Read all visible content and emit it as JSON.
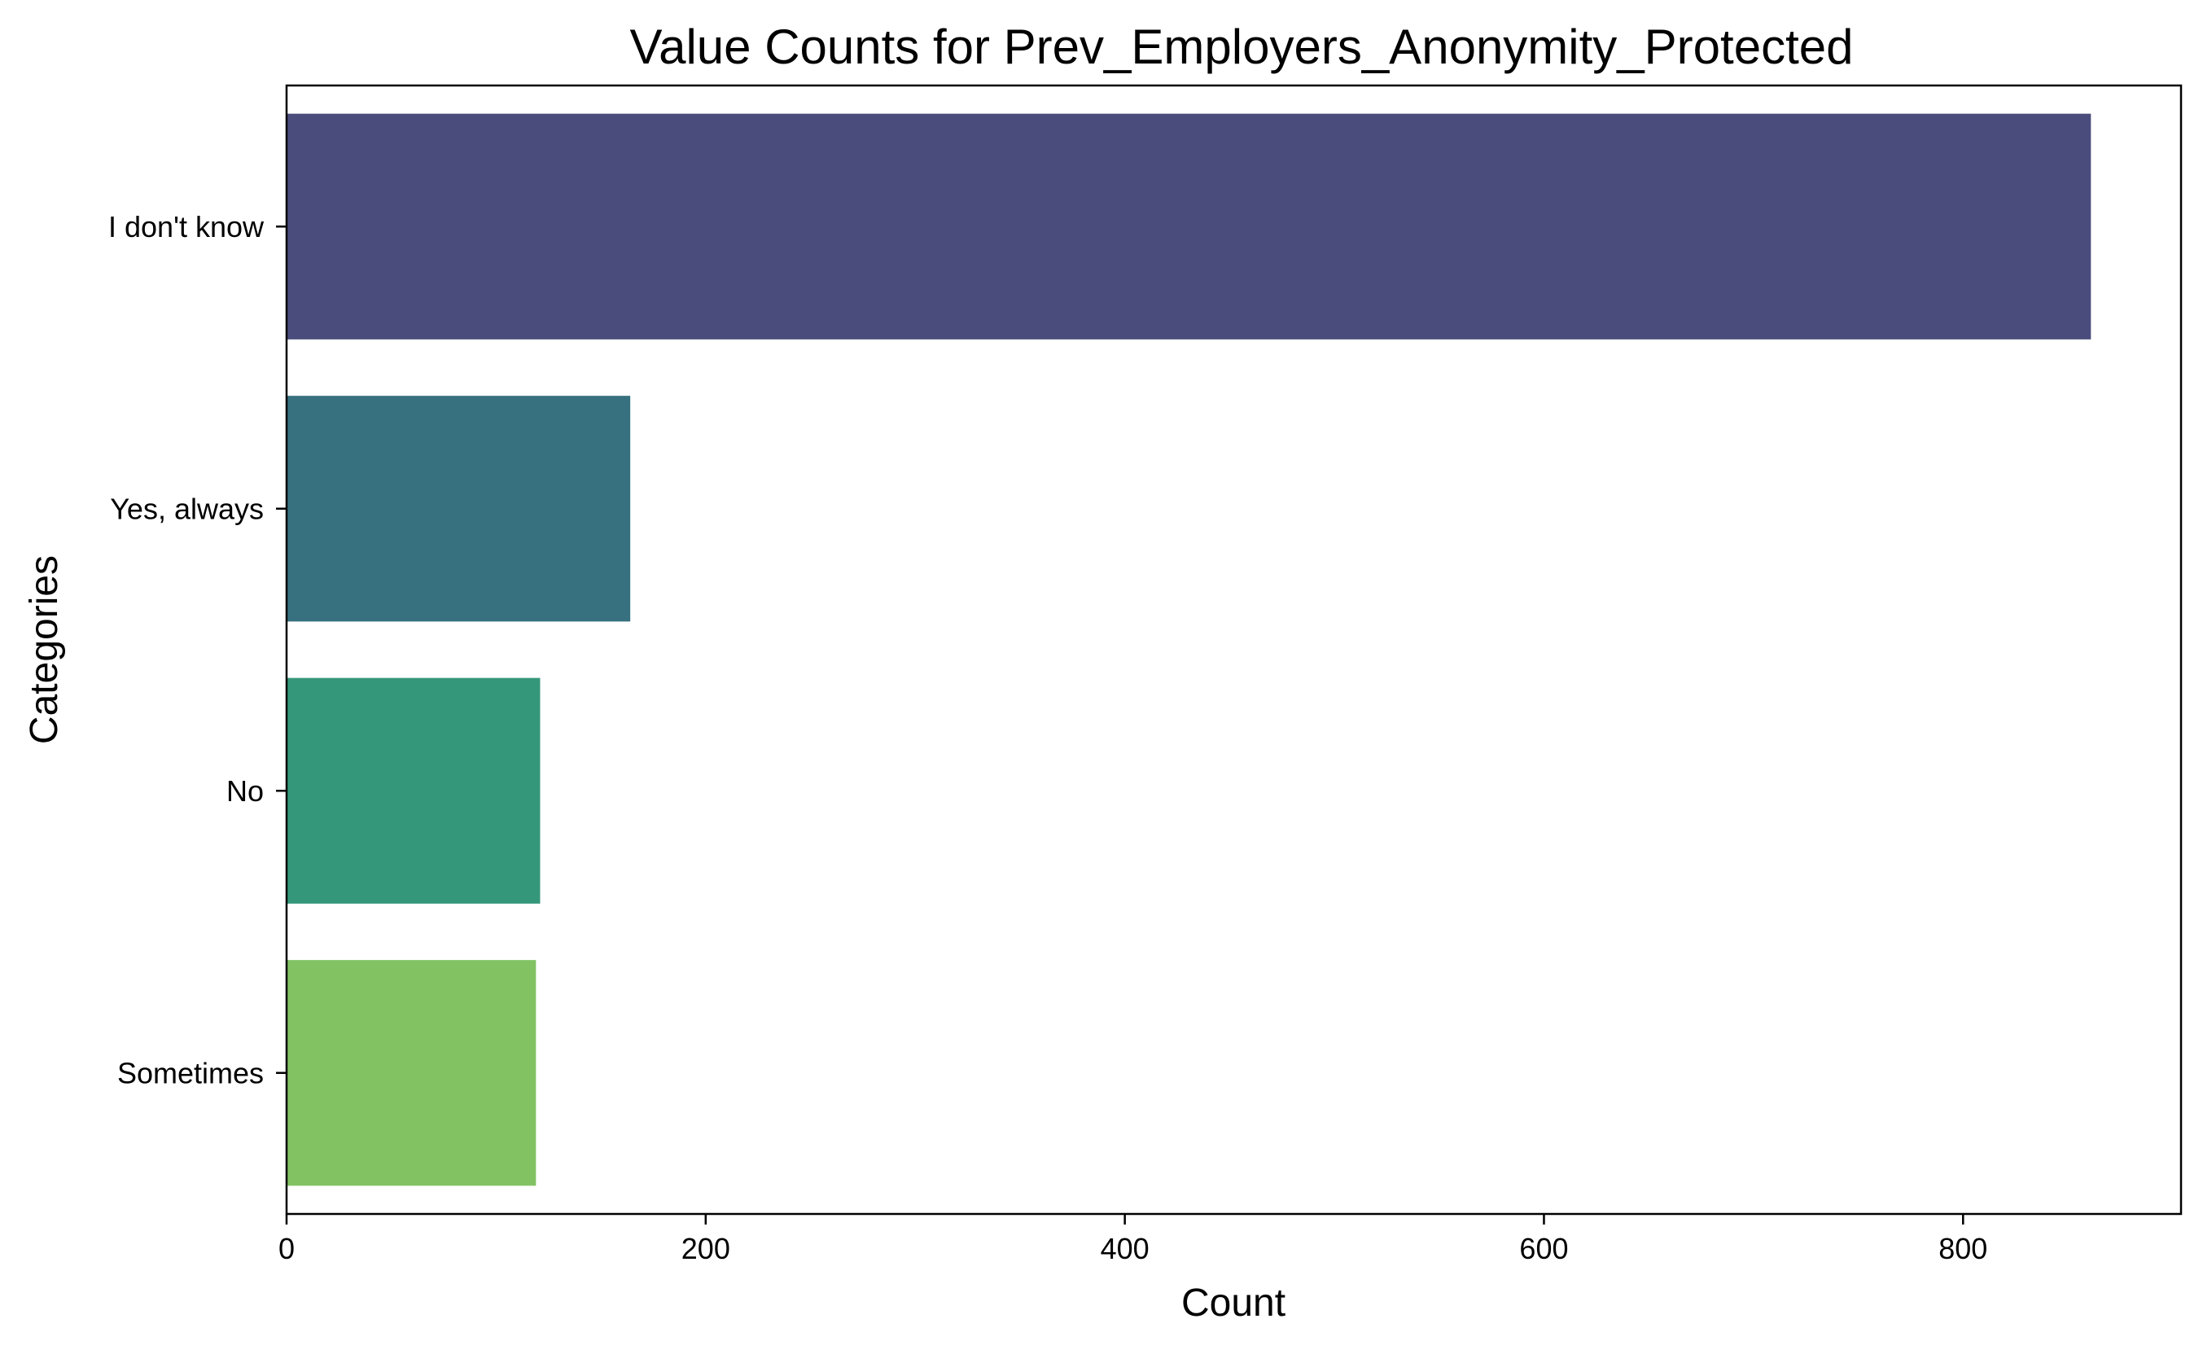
{
  "chart_data": {
    "type": "bar",
    "orientation": "horizontal",
    "title": "Value Counts for Prev_Employers_Anonymity_Protected",
    "xlabel": "Count",
    "ylabel": "Categories",
    "categories": [
      "I don't know",
      "Yes, always",
      "No",
      "Sometimes"
    ],
    "values": [
      861,
      164,
      121,
      119
    ],
    "colors": [
      "#4a4d7c",
      "#37717f",
      "#35977a",
      "#82c263"
    ],
    "xlim": [
      0,
      904
    ],
    "xticks": [
      0,
      200,
      400,
      600,
      800
    ],
    "grid": false,
    "legend": "none"
  }
}
